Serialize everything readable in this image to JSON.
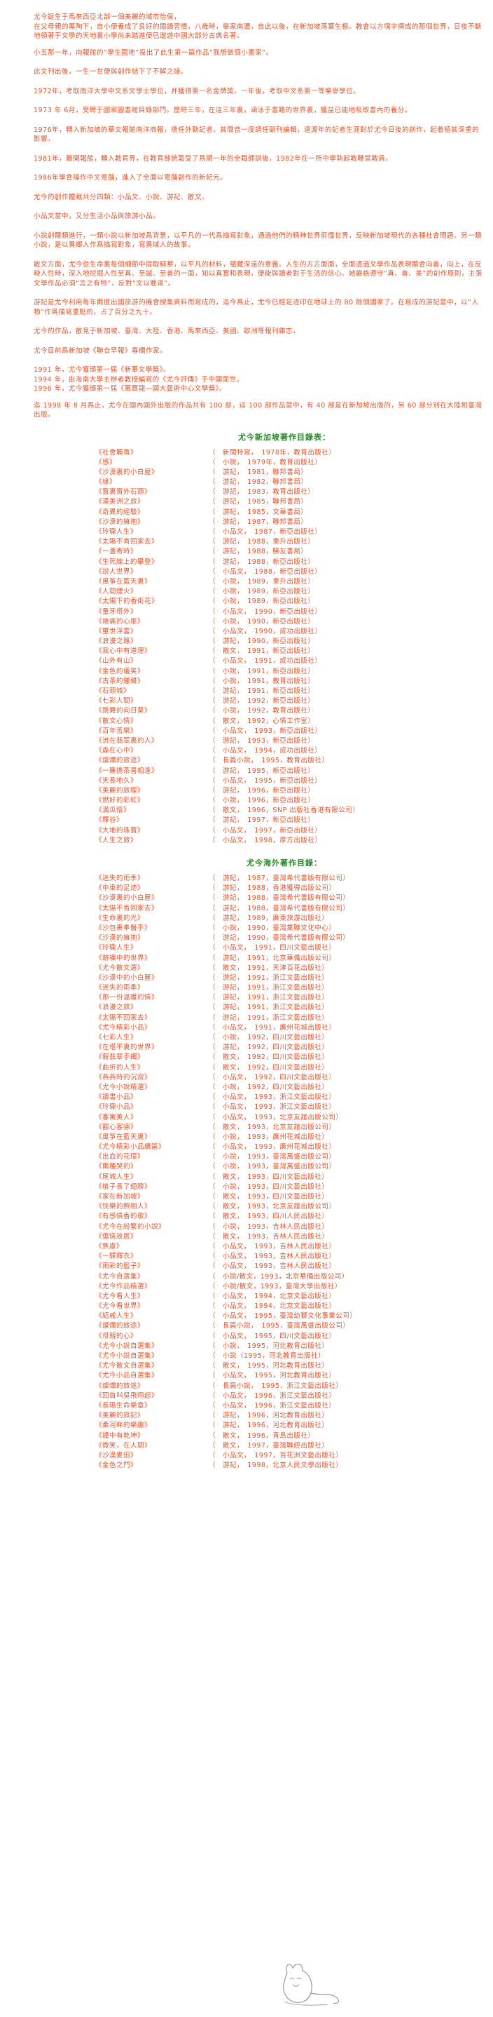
{
  "intro_paragraphs": [
    [
      "尤今誕生于馬來西亞北部一個美麗的城市怡保，",
      "在父母親的薰陶下，自小便養成了良好的閱讀習慣，八歲時，舉家南遷，自此以後，在新加坡落葉生根。教會以方塊字撰成的那個世界，日夜不斷地領著于文學的天地裏小學尚未踏進便已遨遊中國大部分古典名著。"
    ],
    [
      "小五那一年，向報館的“學生園地”投出了此生第一篇作品“我想做個小畫家”。"
    ],
    [
      "此文刊出後，一生一世便與創作結下了不解之緣。"
    ],
    [
      "1972年，考取南洋大學中文系文學士學位，并獲得第一名金牌獎。一年後，考取中文系第一等榮譽學位。"
    ],
    [
      "1973 年 6月，受聘于國家圖書館目錄部門。歷時三年，在這三年裏，涵泳于書籍的世界裏，獲益已能地吸取書內的養分。"
    ],
    [
      "1976年，轉入新加坡的華文報館南洋商報，擔任外勤記者。其間曾一度調任副刊編輯，遠渡年的記者生涯對於尤今日後的創作，起着極其深重的影響。"
    ],
    [
      "1981年，離開報館，轉入教育界，在教育部統籌受了爲期一年的全職師訓後，1982年在一所中學執起教鞭當教員。"
    ],
    [
      "1986年學會操作中文電腦，進入了全面以電腦創作的新紀元。"
    ],
    [
      "尤今的創作體裁共分四類：小品文、小說、游記、散文。"
    ],
    [
      "小品文當中，又分生活小品與旅游小品。"
    ],
    [
      "小說創體類進行，一類小說以新加坡爲背景，以平凡的一代爲描寫對象，通過他們的精神世界剪懂世界，反映新加坡現代的各種社會問題。另一類小說，是以異鄉人作爲描寫對象，寫異域人的故事。"
    ],
    [
      "散文方面，尤今從生命裏每個細節中提取精華，以平凡的材料，蘊藏深遠的意義。人生的方方面面，全面透過文學作品表現體會向善，向上，在反映人性時，深入地挖掘人性至真、至誠、至善的一面，知以真實和表現，便能與讀者對于生活的信心。她嚴格遵守“真、善、美”的創作原則，主張文學作品必須“言之有物”，反對“文以載道”。"
    ],
    [
      "游記是尤今利用每年兩度出國旅游的機會搜集資料而寫成的，迄今爲止，尤今已經足迹印在地球上的 80 餘個國家了。在寫成的游記當中，以“人物”作爲描寫重點的，占了百分之九十。"
    ],
    [
      "尤今的作品，散見于新加坡、臺灣、大陸、香港、馬來西亞、美國、歐洲等報刊雜志。"
    ],
    [
      "尤今目前爲新加坡《聯合早報》專欄作家。"
    ],
    [
      "1991 年，尤今獲頒第一屆《新華文學獎》。",
      "1994 年，由海南大學主辦者教授編寫的《尤今評傳》于中國面世。",
      "1996 年，尤今獲頒第一屆《萬寶龍—國大藝術中心文學獎》。"
    ],
    [
      "迄 1998 年 8 月爲止，尤今在國內國外出版的作品共有 100 部，這 100 部作品當中，有 40 部是在新加坡出版的，另 60 部分別在大陸和臺灣出版。"
    ]
  ],
  "singapore_section": {
    "title": "尤今新加坡著作目錄表：",
    "rows": [
      {
        "title": "《社會觸角》",
        "details": "（　新聞特寫，　1978年，教育出版社）"
      },
      {
        "title": "《感》",
        "details": "（　小說，　1979年，教育出版社）"
      },
      {
        "title": "《沙漠裏的小白屋》",
        "details": "（　游記，　1981，聯邦書局）"
      },
      {
        "title": "《綠》",
        "details": "（　游記，　1982，聯邦書局）"
      },
      {
        "title": "《窗裏窗外石頭》",
        "details": "（　游記，　1983，教育出版社）"
      },
      {
        "title": "《漢美洲之旅》",
        "details": "（　游記，　1985，聯邦書局）"
      },
      {
        "title": "《奇異的經驗》",
        "details": "（　游記，　1985，文華書局）"
      },
      {
        "title": "《沙漠的擁抱》",
        "details": "（　游記，　1987，聯邦書局）"
      },
      {
        "title": "《玲瓏人生》",
        "details": "（　小品文，　1987，新亞出版社）"
      },
      {
        "title": "《太陽不肯回家去》",
        "details": "（　游記，　1988，東升出版社）"
      },
      {
        "title": "《一盞寄時》",
        "details": "（　游記，　1988，勝友書局）"
      },
      {
        "title": "《生死線上的攀登》",
        "details": "（　游記，　1988，新亞出版社）"
      },
      {
        "title": "《說人世界》",
        "details": "（　小品文，　1988，新亞出版社）"
      },
      {
        "title": "《風筝在藍天裏》",
        "details": "（　小說，　1989，東升出版社）"
      },
      {
        "title": "《人間煙火》",
        "details": "（　小說，　1989，新亞出版社）"
      },
      {
        "title": "《太陽下的香街花》",
        "details": "（　小說，　1989，新亞出版社）"
      },
      {
        "title": "《童牙塔外》",
        "details": "（　小品文，　1990，新亞出版社）"
      },
      {
        "title": "《燒痛的心扉》",
        "details": "（　小說，　1990，新亞出版社）"
      },
      {
        "title": "《璽世浮雲》",
        "details": "（　小品文，　1990，成功出版社）"
      },
      {
        "title": "《浪漫之路》",
        "details": "（　游記，　1990，新亞出版社）"
      },
      {
        "title": "《我心中有道理》",
        "details": "（　散文，　1991，新亞出版社）"
      },
      {
        "title": "《山外有山》",
        "details": "（　小品文，　1991，成功出版社）"
      },
      {
        "title": "《金色的儀笑》",
        "details": "（　小說，　1991，新亞出版社）"
      },
      {
        "title": "《古茶的鍾聲》",
        "details": "（　小說，　1991，教育出版社）"
      },
      {
        "title": "《石頭城》",
        "details": "（　游記，　1991，新亞出版社）"
      },
      {
        "title": "《七彩人間》",
        "details": "（　游記，　1992，新亞出版社）"
      },
      {
        "title": "《跳舞的向日葵》",
        "details": "（　小說，　1992，教育出版社）"
      },
      {
        "title": "《散文心情》",
        "details": "（　散文，　1992，心情工作室）"
      },
      {
        "title": "《百年苦樂》",
        "details": "（　小品文，　1993，新亞出版社）"
      },
      {
        "title": "《流在翡翠裏的人》",
        "details": "（　游記，　1993，新亞出版社）"
      },
      {
        "title": "《森在心中》",
        "details": "（　小品文，　1994，成功出版社）"
      },
      {
        "title": "《燦爛的旅途》",
        "details": "（　長篇小說，　1995，教育出版社）"
      },
      {
        "title": "《一籮擔茶喜相逢》",
        "details": "（　游記，　1995，新亞出版社）"
      },
      {
        "title": "《天長地久》",
        "details": "（　小品文，　1995，新亞出版社）"
      },
      {
        "title": "《美麗的旅程》",
        "details": "（　游記，　1996，新亞出版社）"
      },
      {
        "title": "《燃好的彩虹》",
        "details": "（　小說，　1996，新亞出版社）"
      },
      {
        "title": "《滿瓜懷》",
        "details": "（　散文，　1996，SNP 出版社香港有限公司）"
      },
      {
        "title": "《釋谷》",
        "details": "（　游記，　1997，新亞出版社）"
      },
      {
        "title": "《大地的珠寶》",
        "details": "（　小品文，　1997，新亞出版社）"
      },
      {
        "title": "《人生之旅》",
        "details": "（　小品文，　1998，厚方出版社）"
      }
    ]
  },
  "overseas_section": {
    "title": "尤今海外著作目錄：",
    "rows": [
      {
        "title": "《迷失的雨季》",
        "details": "（　游記，　1987，臺灣希代書版有限公司）"
      },
      {
        "title": "《中東的足迹》",
        "details": "（　游記，　1988，香港獲得出版公司）"
      },
      {
        "title": "《沙漠裏的小白屋》",
        "details": "（　游記，　1988，臺灣希代書版有限公司）"
      },
      {
        "title": "《太陽不肯回家去》",
        "details": "（　游記，　1988，臺灣希代書版有限公司）"
      },
      {
        "title": "《生命裏的光》",
        "details": "（　游記，　1989，廣東旅游出版社）"
      },
      {
        "title": "《沙包裹拳醫手》",
        "details": "（　小說，　1990，臺灣業聯文化中心）"
      },
      {
        "title": "《沙漠的擁抱》",
        "details": "（　游記，　1990，臺灣希代書版有限公司）"
      },
      {
        "title": "《玲瓏人生》",
        "details": "（　小品文，　1991，四川文藝出版社）"
      },
      {
        "title": "《跡裸中的世界》",
        "details": "（　游記，　1991，北京華僑出版公司）"
      },
      {
        "title": "《尤今散文選》",
        "details": "（　散文，　1991，天津百花出版社）"
      },
      {
        "title": "《沙漠中的小白屋》",
        "details": "（　游記，　1991，浙江文藝出版社）"
      },
      {
        "title": "《迷失的雨季》",
        "details": "（　游記，　1991，浙江文藝出版社）"
      },
      {
        "title": "《那一份溫暖的情》",
        "details": "（　游記，　1991，浙江文藝出版社）"
      },
      {
        "title": "《浪漫之旅》",
        "details": "（　游記，　1991，浙江文藝出版社）"
      },
      {
        "title": "《太陽不回家去》",
        "details": "（　游記，　1991，浙江文藝出版社）"
      },
      {
        "title": "《尤今精彩小品》",
        "details": "（　小品文，　1991，廣州花城出版社）"
      },
      {
        "title": "《七彩人生》",
        "details": "（　小說，　1992，四川文藝出版社）"
      },
      {
        "title": "《在塔平裏的世界》",
        "details": "（　游記，　1992，四川文藝出版社）"
      },
      {
        "title": "《假翡翠手鐲》",
        "details": "（　散文，　1992，四川文藝出版社）"
      },
      {
        "title": "《曲折的人生》",
        "details": "（　散文，　1992，四川文藝出版社）"
      },
      {
        "title": "《燕燕時的沉寂》",
        "details": "（　小品文，　1992，四川文藝出版社）"
      },
      {
        "title": "《尤今小說精選》",
        "details": "（　小說，　1992，四川文藝出版社）"
      },
      {
        "title": "《讀書小品》",
        "details": "（　小品文，　1993，浙江文藝出版社）"
      },
      {
        "title": "《玲瓏小品》",
        "details": "（　小品文，　1993，浙江文藝出版社）"
      },
      {
        "title": "《客寓美人》",
        "details": "（　小品文，　1993，北京友誼出版公司）"
      },
      {
        "title": "《觀心客德》",
        "details": "（　散文，　1993，北京友誼出版公司）"
      },
      {
        "title": "《風筝在藍天裏》",
        "details": "（　小說，　1993，廣州花城出版社）"
      },
      {
        "title": "《尤今精彩小品續篇》",
        "details": "（　小品文，　1993，廣州花城出版社）"
      },
      {
        "title": "《出血的花環》",
        "details": "（　小說，　1993，臺灣萬盛出版公司）"
      },
      {
        "title": "《兩種哭的》",
        "details": "（　小說，　1993，臺灣萬盛出版公司）"
      },
      {
        "title": "《尾城人生》",
        "details": "（　散文，　1993，四川文藝出版社）"
      },
      {
        "title": "《植子長了翅膀》",
        "details": "（　小說，　1993，四川文藝出版社）"
      },
      {
        "title": "《家在新加坡》",
        "details": "（　散文，　1993，四川文藝出版社）"
      },
      {
        "title": "《快樂的照相人》",
        "details": "（　散文，　1993，北京友誼出版公司）"
      },
      {
        "title": "《有感情香的歌》",
        "details": "（　散文，　1993，四川人民出版社）"
      },
      {
        "title": "《尤今在紛繁的小說》",
        "details": "（　小說，　1993，吉林人民出版社）"
      },
      {
        "title": "《傷情故居》",
        "details": "（　散文，　1993，吉林人民出版社）"
      },
      {
        "title": "《焦慮》",
        "details": "（　小品文，　1993，吉林人民出版社）"
      },
      {
        "title": "《一驛釋衣》",
        "details": "（　小品文，　1993，吉林人民出版社）"
      },
      {
        "title": "《雨彩的籃子》",
        "details": "（　小品文，　1993，吉林人民出版社）"
      },
      {
        "title": "《尤今自選集》",
        "details": "（　小說/散文，1993，北京華僑出版公司）"
      },
      {
        "title": "《尤今作品精選》",
        "details": "（　小說/散文，1993，臺灣大學出版社）"
      },
      {
        "title": "《尤今看人生》",
        "details": "（　小品文，　1994，北京文藝出版社）"
      },
      {
        "title": "《尤今看世界》",
        "details": "（　小品文，　1994，北京文藝出版社）"
      },
      {
        "title": "《紹戚人生》",
        "details": "（　小品文，　1995，臺灣幼獅文化事業公司）"
      },
      {
        "title": "《燦爛的旅途》",
        "details": "（　長篇小說，　1995，臺灣萬盛出版公司）"
      },
      {
        "title": "《母親的心》",
        "details": "（　小品文，　1995，四川文藝出版社）"
      },
      {
        "title": "《尤今小說自選集》",
        "details": "（　小說，　1995，河北教育出版社）"
      },
      {
        "title": "《尤今小說自選集》",
        "details": "（　小說（1995，河北教育出版社）"
      },
      {
        "title": "《尤今散文自選集》",
        "details": "（　散文，　1995，河北教育出版社）"
      },
      {
        "title": "《尤今小品自選集》",
        "details": "（　小品文，　1995，河北教育出版社）"
      },
      {
        "title": "《燦爛的旅途》",
        "details": "（　長篇小說，　1995，浙江文藝出版社）"
      },
      {
        "title": "《回首叫吳飛翔起》",
        "details": "（　小品文，　1996，浙江文藝出版社）"
      },
      {
        "title": "《長陽生命樂章》",
        "details": "（　小品文，　1996，浙江文藝出版社）"
      },
      {
        "title": "《美麗的旅記》",
        "details": "（　游記，　1996，河北教育出版社）"
      },
      {
        "title": "《柔河畔的樂趣》",
        "details": "（　游記，　1996，河北教育出版社）"
      },
      {
        "title": "《鐘中有乾坤》",
        "details": "（　散文，　1996，青島出版社）"
      },
      {
        "title": "《微笑，在人間》",
        "details": "（　散文，　1997，臺灣聯經出版社）"
      },
      {
        "title": "《沙漠麥田》",
        "details": "（　小品文，　1997，百花洲文藝出版社）"
      },
      {
        "title": "《金色之門》",
        "details": "（　游記，　1998，北京人民文學出版社）"
      }
    ]
  },
  "colors": {
    "text": "#e0532a",
    "section_title": "#2a8a2a",
    "logo": "#9a9a9a"
  }
}
